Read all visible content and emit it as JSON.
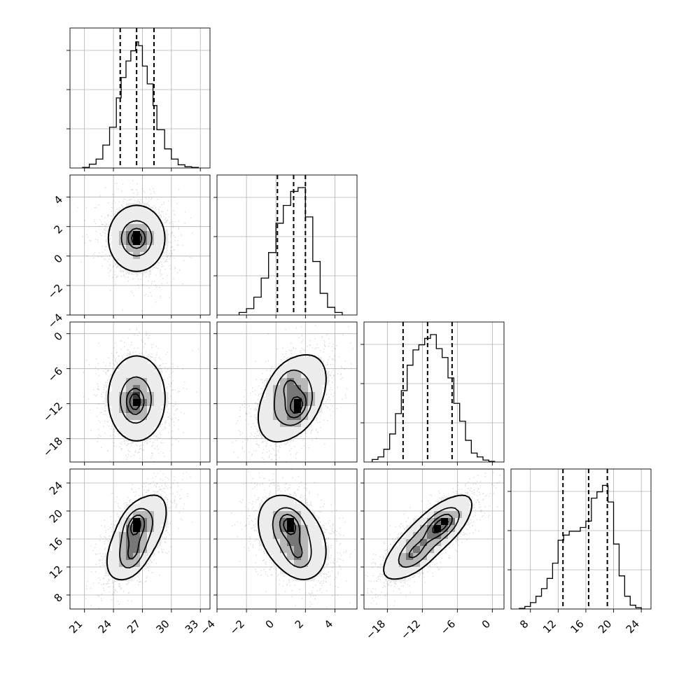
{
  "chart_data": {
    "type": "corner",
    "parameters": [
      {
        "xlim": [
          19.5,
          34
        ],
        "ylim": [
          -4,
          5.5
        ],
        "ticks": [
          21,
          24,
          27,
          30,
          33
        ],
        "tick_labels": [
          "21",
          "24",
          "27",
          "30",
          "33"
        ]
      },
      {
        "xlim": [
          -4,
          5.5
        ],
        "ylim": [
          -4,
          5.5
        ],
        "ticks": [
          -4,
          -2,
          0,
          2,
          4
        ],
        "tick_labels": [
          "−4",
          "−2",
          "0",
          "2",
          "4"
        ]
      },
      {
        "xlim": [
          -22,
          2
        ],
        "ylim": [
          -22,
          2
        ],
        "ticks": [
          -18,
          -12,
          -6,
          0
        ],
        "tick_labels": [
          "−18",
          "−12",
          "−6",
          "0"
        ]
      },
      {
        "xlim": [
          5.2,
          25.4
        ],
        "ylim": [
          6,
          26
        ],
        "ticks": [
          8,
          12,
          16,
          20,
          24
        ],
        "tick_labels": [
          "8",
          "12",
          "16",
          "20",
          "24"
        ]
      }
    ],
    "histograms": [
      {
        "quantiles": [
          24.7,
          26.4,
          28.2
        ],
        "bin_edges": [
          20.8,
          21.5,
          22.2,
          22.9,
          23.6,
          24.3,
          24.8,
          25.3,
          25.8,
          26.3,
          26.6,
          27.0,
          27.5,
          28.1,
          28.5,
          29.3,
          30.0,
          30.7,
          31.4,
          32.1,
          32.8
        ],
        "counts": [
          0.005,
          0.03,
          0.07,
          0.18,
          0.32,
          0.55,
          0.71,
          0.84,
          0.92,
          0.99,
          0.96,
          0.8,
          0.66,
          0.49,
          0.3,
          0.15,
          0.07,
          0.025,
          0.01,
          0.005
        ]
      },
      {
        "quantiles": [
          0.1,
          1.2,
          2.0
        ],
        "bin_edges": [
          -2.5,
          -2.0,
          -1.5,
          -1.0,
          -0.5,
          0.0,
          0.5,
          1.0,
          1.5,
          2.0,
          2.5,
          3.0,
          3.5,
          4.0,
          4.5
        ],
        "counts": [
          0.02,
          0.05,
          0.14,
          0.29,
          0.49,
          0.72,
          0.86,
          0.97,
          1.0,
          0.77,
          0.42,
          0.17,
          0.06,
          0.02
        ]
      },
      {
        "quantiles": [
          -15.3,
          -11.1,
          -6.9
        ],
        "bin_edges": [
          -20.6,
          -19.6,
          -18.6,
          -17.6,
          -16.6,
          -15.6,
          -14.6,
          -13.6,
          -12.6,
          -11.6,
          -10.6,
          -9.6,
          -8.6,
          -7.6,
          -6.6,
          -5.6,
          -4.6,
          -3.6,
          -2.6,
          -1.6,
          -0.6,
          0.4
        ],
        "counts": [
          0.02,
          0.04,
          0.1,
          0.22,
          0.38,
          0.56,
          0.76,
          0.88,
          0.92,
          0.97,
          1.0,
          0.89,
          0.82,
          0.66,
          0.46,
          0.32,
          0.17,
          0.07,
          0.04,
          0.015,
          0.005
        ]
      },
      {
        "quantiles": [
          12.7,
          16.4,
          19.1
        ],
        "bin_edges": [
          6.4,
          7.2,
          8.0,
          8.8,
          9.6,
          10.4,
          11.2,
          12.0,
          12.8,
          13.6,
          14.4,
          15.2,
          16.0,
          16.8,
          17.6,
          18.4,
          19.2,
          20.0,
          20.8,
          21.6,
          22.4,
          23.2,
          24.0
        ],
        "counts": [
          0.005,
          0.02,
          0.05,
          0.1,
          0.16,
          0.24,
          0.36,
          0.54,
          0.58,
          0.61,
          0.61,
          0.64,
          0.69,
          0.87,
          0.92,
          0.97,
          0.84,
          0.51,
          0.26,
          0.1,
          0.03,
          0.01
        ]
      }
    ],
    "pairs": [
      {
        "x": 0,
        "y": 1,
        "mean": [
          26.4,
          1.2
        ],
        "sd": [
          1.7,
          1.3
        ],
        "rho": 0.0,
        "peaks": [
          [
            26.4,
            1.2
          ]
        ]
      },
      {
        "x": 0,
        "y": 2,
        "mean": [
          26.4,
          -11.1
        ],
        "sd": [
          1.7,
          4.2
        ],
        "rho": 0.0,
        "peaks": [
          [
            26.2,
            -11.8
          ]
        ]
      },
      {
        "x": 1,
        "y": 2,
        "mean": [
          1.1,
          -11.1
        ],
        "sd": [
          1.3,
          4.2
        ],
        "rho": 0.45,
        "peaks": [
          [
            1.5,
            -12.7
          ],
          [
            0.8,
            -8.5
          ]
        ]
      },
      {
        "x": 0,
        "y": 3,
        "mean": [
          26.4,
          16.3
        ],
        "sd": [
          1.7,
          3.3
        ],
        "rho": 0.6,
        "peaks": [
          [
            26.2,
            18.2
          ],
          [
            26.0,
            13.5
          ]
        ]
      },
      {
        "x": 1,
        "y": 3,
        "mean": [
          1.1,
          16.3
        ],
        "sd": [
          1.3,
          3.3
        ],
        "rho": -0.35,
        "peaks": [
          [
            0.9,
            18.2
          ],
          [
            1.5,
            13.6
          ]
        ]
      },
      {
        "x": 2,
        "y": 3,
        "mean": [
          -11.1,
          16.3
        ],
        "sd": [
          4.2,
          3.3
        ],
        "rho": 0.8,
        "peaks": [
          [
            -8.5,
            18.2
          ],
          [
            -13.5,
            13.6
          ]
        ]
      }
    ],
    "contour_levels": [
      0.12,
      0.39,
      0.68,
      0.86
    ],
    "grid": true,
    "quantile_line_style": "dashed"
  }
}
